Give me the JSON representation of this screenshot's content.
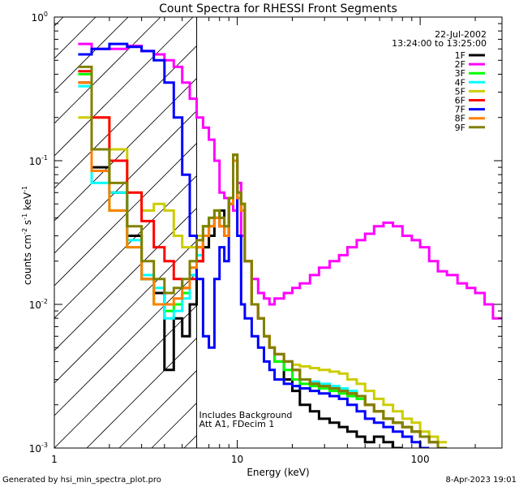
{
  "chart_data": {
    "type": "line",
    "title": "Count Spectra for RHESSI Front Segments",
    "xlabel": "Energy (keV)",
    "ylabel_parts": {
      "a": "counts cm",
      "b": "-2",
      "c": " s",
      "d": "-1",
      "e": " keV",
      "f": "-1"
    },
    "xscale": "log",
    "yscale": "log",
    "xlim": [
      1,
      280
    ],
    "ylim": [
      0.001,
      1
    ],
    "x_ticks": [
      {
        "v": 1,
        "label": "1"
      },
      {
        "v": 10,
        "label": "10"
      },
      {
        "v": 100,
        "label": "100"
      }
    ],
    "y_ticks": [
      {
        "v": 0.001,
        "base": "10",
        "exp": "-3"
      },
      {
        "v": 0.01,
        "base": "10",
        "exp": "-2"
      },
      {
        "v": 0.1,
        "base": "10",
        "exp": "-1"
      },
      {
        "v": 1,
        "base": "10",
        "exp": "0"
      }
    ],
    "hatched_region_keV": [
      1,
      6
    ],
    "date": "22-Jul-2002",
    "time_range": "13:24:00 to 13:25:00",
    "annotation_lines": [
      "Includes Background",
      "Att A1, FDecim 1"
    ],
    "annotation_keV": 6,
    "footer_left": "Generated by hsi_min_spectra_plot.pro",
    "footer_right": "8-Apr-2023 19:01",
    "energy_edges": [
      1.35,
      1.6,
      2.0,
      2.5,
      3.0,
      3.5,
      4.0,
      4.5,
      5.0,
      5.5,
      6.0,
      6.5,
      7.0,
      7.5,
      8.0,
      8.5,
      9.0,
      9.5,
      10.0,
      10.5,
      11.0,
      12.0,
      13.0,
      14.0,
      15.0,
      16.0,
      18.0,
      20.0,
      22.0,
      25.0,
      28.0,
      32.0,
      36.0,
      40.0,
      45.0,
      50.0,
      56.0,
      63.0,
      71.0,
      80.0,
      90.0,
      100.0,
      112.0,
      125.0,
      140.0,
      160.0,
      180.0,
      200.0,
      225.0,
      250.0,
      280.0
    ],
    "series": [
      {
        "name": "1F",
        "color": "#000000",
        "values": [
          0.35,
          0.09,
          0.06,
          0.03,
          0.015,
          0.012,
          0.0035,
          0.008,
          0.006,
          0.01,
          0.02,
          0.025,
          0.03,
          0.04,
          0.045,
          0.03,
          0.055,
          0.11,
          0.06,
          0.05,
          0.02,
          0.01,
          0.008,
          0.006,
          0.005,
          0.004,
          0.003,
          0.0025,
          0.002,
          0.0018,
          0.0016,
          0.0015,
          0.0014,
          0.0013,
          0.0012,
          0.0011,
          0.0012,
          0.0011,
          0.001
        ]
      },
      {
        "name": "2F",
        "color": "#ff00ff",
        "values": [
          0.65,
          0.6,
          0.6,
          0.63,
          0.58,
          0.55,
          0.5,
          0.45,
          0.35,
          0.27,
          0.2,
          0.17,
          0.14,
          0.1,
          0.06,
          0.055,
          0.05,
          0.045,
          0.07,
          0.03,
          0.02,
          0.015,
          0.012,
          0.011,
          0.01,
          0.011,
          0.012,
          0.013,
          0.014,
          0.016,
          0.018,
          0.02,
          0.022,
          0.025,
          0.028,
          0.031,
          0.035,
          0.037,
          0.035,
          0.03,
          0.028,
          0.025,
          0.02,
          0.017,
          0.016,
          0.014,
          0.013,
          0.012,
          0.01,
          0.008
        ]
      },
      {
        "name": "3F",
        "color": "#00ff00",
        "values": [
          0.4,
          0.085,
          0.045,
          0.025,
          0.015,
          0.01,
          0.009,
          0.01,
          0.012,
          0.018,
          0.025,
          0.035,
          0.04,
          0.045,
          0.035,
          0.03,
          0.05,
          0.1,
          0.055,
          0.045,
          0.02,
          0.01,
          0.008,
          0.006,
          0.005,
          0.004,
          0.0035,
          0.003,
          0.0028,
          0.0027,
          0.0026,
          0.0025,
          0.0024,
          0.0023,
          0.0022,
          0.002,
          0.0018,
          0.0016,
          0.0015,
          0.0014,
          0.0013,
          0.0012,
          0.0011,
          0.001
        ]
      },
      {
        "name": "4F",
        "color": "#00ffff",
        "values": [
          0.33,
          0.07,
          0.06,
          0.028,
          0.016,
          0.013,
          0.008,
          0.009,
          0.011,
          0.016,
          0.022,
          0.03,
          0.035,
          0.04,
          0.035,
          0.03,
          0.05,
          0.1,
          0.055,
          0.045,
          0.02,
          0.01,
          0.008,
          0.006,
          0.005,
          0.0045,
          0.004,
          0.0035,
          0.003,
          0.0029,
          0.0028,
          0.0027,
          0.0026,
          0.0025,
          0.0023,
          0.002,
          0.0018,
          0.0016,
          0.0015,
          0.0014,
          0.0013,
          0.0012,
          0.0011,
          0.001
        ]
      },
      {
        "name": "5F",
        "color": "#cccc00",
        "values": [
          0.2,
          0.2,
          0.12,
          0.06,
          0.045,
          0.05,
          0.045,
          0.03,
          0.025,
          0.025,
          0.03,
          0.035,
          0.04,
          0.045,
          0.04,
          0.035,
          0.055,
          0.11,
          0.06,
          0.05,
          0.02,
          0.01,
          0.008,
          0.006,
          0.005,
          0.0045,
          0.004,
          0.0038,
          0.0037,
          0.0036,
          0.0035,
          0.0034,
          0.0033,
          0.003,
          0.0028,
          0.0025,
          0.0022,
          0.002,
          0.0018,
          0.0016,
          0.0015,
          0.0013,
          0.0012,
          0.0011
        ]
      },
      {
        "name": "6F",
        "color": "#ff0000",
        "values": [
          0.42,
          0.2,
          0.1,
          0.06,
          0.038,
          0.025,
          0.02,
          0.015,
          0.013,
          0.015,
          0.02,
          0.03,
          0.035,
          0.04,
          0.035,
          0.03,
          0.05,
          0.1,
          0.055,
          0.045,
          0.02,
          0.01,
          0.008,
          0.006,
          0.005,
          0.0045,
          0.004,
          0.0035,
          0.003,
          0.0028,
          0.0027,
          0.0026,
          0.0025,
          0.0024,
          0.0023,
          0.002,
          0.0018,
          0.0016,
          0.0015,
          0.0014,
          0.0013,
          0.0012,
          0.0011,
          0.001
        ]
      },
      {
        "name": "7F",
        "color": "#0000ff",
        "values": [
          0.55,
          0.6,
          0.65,
          0.62,
          0.58,
          0.5,
          0.35,
          0.2,
          0.08,
          0.03,
          0.015,
          0.006,
          0.005,
          0.015,
          0.025,
          0.02,
          0.05,
          0.1,
          0.03,
          0.01,
          0.008,
          0.006,
          0.005,
          0.004,
          0.0035,
          0.003,
          0.0028,
          0.0027,
          0.0026,
          0.0025,
          0.0024,
          0.0023,
          0.0022,
          0.002,
          0.0018,
          0.0016,
          0.0015,
          0.0014,
          0.0013,
          0.0012,
          0.0011,
          0.001
        ]
      },
      {
        "name": "8F",
        "color": "#ff8000",
        "values": [
          0.35,
          0.085,
          0.045,
          0.025,
          0.015,
          0.01,
          0.01,
          0.011,
          0.013,
          0.018,
          0.025,
          0.03,
          0.035,
          0.04,
          0.035,
          0.03,
          0.05,
          0.1,
          0.055,
          0.045,
          0.02,
          0.01,
          0.008,
          0.006,
          0.005,
          0.0045,
          0.004,
          0.0035,
          0.003,
          0.0028,
          0.0027,
          0.0026,
          0.0025,
          0.0024,
          0.0023,
          0.002,
          0.0018,
          0.0016,
          0.0015,
          0.0014,
          0.0013,
          0.0012,
          0.0011,
          0.001
        ]
      },
      {
        "name": "9F",
        "color": "#808000",
        "values": [
          0.45,
          0.12,
          0.07,
          0.035,
          0.02,
          0.015,
          0.012,
          0.013,
          0.015,
          0.02,
          0.028,
          0.035,
          0.04,
          0.045,
          0.04,
          0.035,
          0.055,
          0.11,
          0.06,
          0.05,
          0.02,
          0.01,
          0.008,
          0.006,
          0.005,
          0.0045,
          0.004,
          0.0035,
          0.003,
          0.0028,
          0.0027,
          0.0026,
          0.0025,
          0.0024,
          0.0023,
          0.002,
          0.0018,
          0.0016,
          0.0015,
          0.0014,
          0.0013,
          0.0012,
          0.0011,
          0.001
        ]
      }
    ]
  }
}
